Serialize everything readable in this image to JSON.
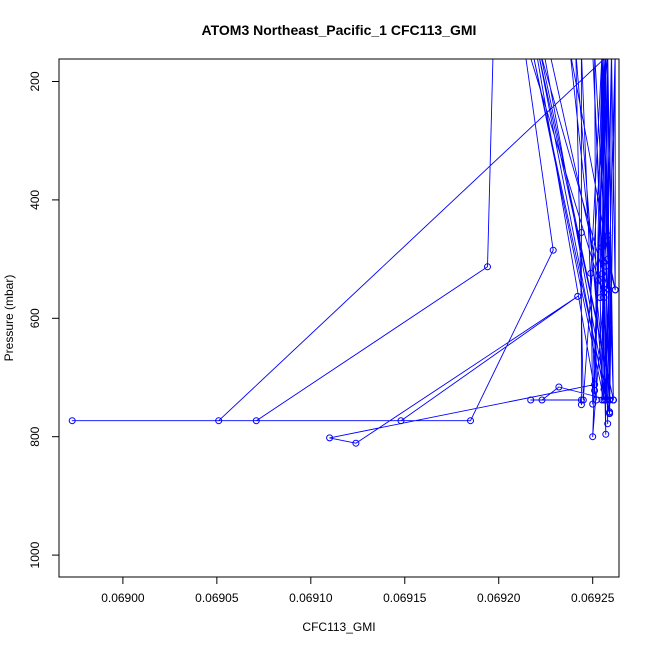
{
  "chart_data": {
    "type": "line",
    "title": "ATOM3 Northeast_Pacific_1 CFC113_GMI",
    "xlabel": "CFC113_GMI",
    "ylabel": "Pressure (mbar)",
    "xlim": [
      0.068966,
      0.069264
    ],
    "ylim": [
      1037,
      162
    ],
    "y_reversed": true,
    "x_ticks": [
      0.069,
      0.06905,
      0.0691,
      0.06915,
      0.0692,
      0.06925
    ],
    "x_tick_labels": [
      "0.06900",
      "0.06905",
      "0.06910",
      "0.06915",
      "0.06920",
      "0.06925"
    ],
    "y_ticks": [
      200,
      400,
      600,
      800,
      1000
    ],
    "y_tick_labels": [
      "200",
      "400",
      "600",
      "800",
      "1000"
    ],
    "grid": false,
    "legend": "none",
    "series": [
      {
        "color": "#0000ff",
        "marker": "open-circle",
        "points": [
          [
            0.06926,
            150
          ],
          [
            0.069258,
            460
          ],
          [
            0.069259,
            758
          ],
          [
            0.069258,
            150
          ],
          [
            0.069257,
            512
          ],
          [
            0.069259,
            738
          ],
          [
            0.069257,
            150
          ],
          [
            0.069256,
            505
          ],
          [
            0.069258,
            778
          ],
          [
            0.069256,
            150
          ],
          [
            0.069255,
            525
          ],
          [
            0.069257,
            796
          ],
          [
            0.069255,
            150
          ],
          [
            0.069254,
            565
          ],
          [
            0.069255,
            738
          ],
          [
            0.069256,
            150
          ],
          [
            0.069253,
            536
          ],
          [
            0.069251,
            722
          ],
          [
            0.069255,
            150
          ],
          [
            0.069249,
            524
          ],
          [
            0.06925,
            745
          ],
          [
            0.069257,
            150
          ],
          [
            0.069256,
            556
          ],
          [
            0.06925,
            800
          ],
          [
            0.069257,
            150
          ],
          [
            0.069255,
            480
          ],
          [
            0.069256,
            720
          ],
          [
            0.069255,
            150
          ],
          [
            0.069258,
            500
          ],
          [
            0.069262,
            552
          ],
          [
            0.06926,
            150
          ],
          [
            0.069259,
            738
          ],
          [
            0.069232,
            716
          ],
          [
            0.069223,
            738
          ],
          [
            0.069217,
            738
          ],
          [
            0.069244,
            738
          ],
          [
            0.069244,
            455
          ],
          [
            0.069244,
            746
          ],
          [
            0.069244,
            150
          ],
          [
            0.069251,
            712
          ],
          [
            0.06911,
            802
          ],
          [
            0.069124,
            811
          ],
          [
            0.069242,
            563
          ],
          [
            0.069148,
            773
          ],
          [
            0.068973,
            773
          ],
          [
            0.069185,
            773
          ],
          [
            0.069229,
            485
          ],
          [
            0.069214,
            150
          ],
          [
            0.069255,
            150
          ],
          [
            0.069261,
            738
          ],
          [
            0.069258,
            150
          ],
          [
            0.069245,
            738
          ],
          [
            0.069241,
            150
          ],
          [
            0.069256,
            738
          ],
          [
            0.069218,
            150
          ],
          [
            0.069259,
            761
          ],
          [
            0.069262,
            150
          ],
          [
            0.069262,
            552
          ],
          [
            0.069238,
            150
          ],
          [
            0.069258,
            738
          ],
          [
            0.06925,
            150
          ],
          [
            0.069259,
            760
          ],
          [
            0.069224,
            150
          ],
          [
            0.069255,
            150
          ],
          [
            0.069261,
            738
          ],
          [
            0.069221,
            150
          ],
          [
            0.069257,
            738
          ],
          [
            0.069262,
            150
          ],
          [
            0.069256,
            150
          ],
          [
            0.069261,
            738
          ],
          [
            0.069222,
            150
          ],
          [
            0.069258,
            550
          ],
          [
            0.069251,
            150
          ],
          [
            0.069252,
            738
          ],
          [
            0.06922,
            150
          ],
          [
            0.069246,
            150
          ],
          [
            0.069216,
            150
          ],
          [
            0.069256,
            565
          ],
          [
            0.069227,
            150
          ],
          [
            0.069197,
            150
          ],
          [
            0.069194,
            513
          ],
          [
            0.069071,
            773
          ],
          [
            0.069051,
            773
          ],
          [
            0.06926,
            150
          ]
        ]
      }
    ]
  }
}
